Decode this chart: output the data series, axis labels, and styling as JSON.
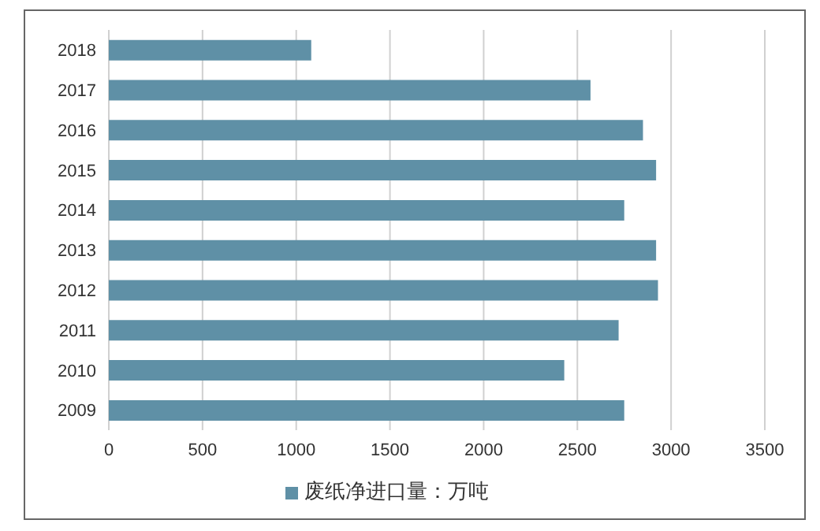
{
  "chart_data": {
    "type": "bar",
    "orientation": "horizontal",
    "categories": [
      "2018",
      "2017",
      "2016",
      "2015",
      "2014",
      "2013",
      "2012",
      "2011",
      "2010",
      "2009"
    ],
    "series": [
      {
        "name": "废纸净进口量：万吨",
        "color": "#5f90a6",
        "values": [
          1080,
          2570,
          2850,
          2920,
          2750,
          2920,
          2930,
          2720,
          2430,
          2750
        ]
      }
    ],
    "xlim": [
      0,
      3500
    ],
    "xticks": [
      0,
      500,
      1000,
      1500,
      2000,
      2500,
      3000,
      3500
    ],
    "grid": "x",
    "legend": "bottom"
  }
}
